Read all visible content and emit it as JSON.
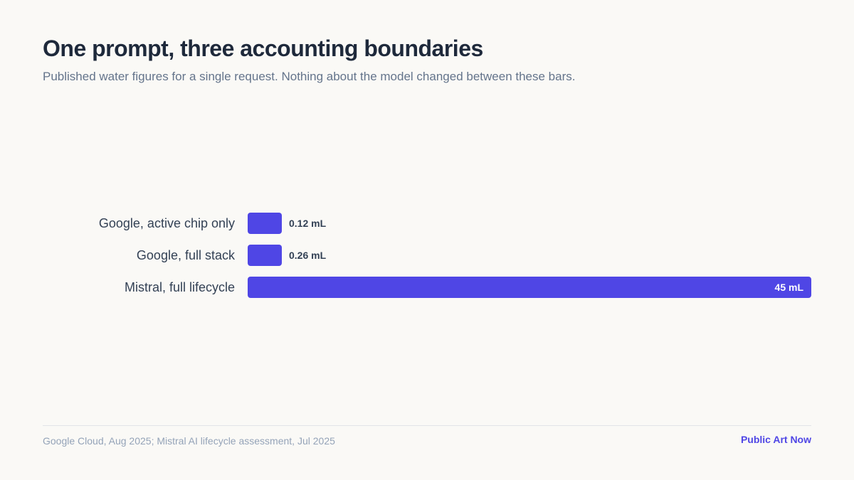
{
  "header": {
    "title": "One prompt, three accounting boundaries",
    "subtitle": "Published water figures for a single request. Nothing about the model changed between these bars."
  },
  "footer": {
    "source": "Google Cloud, Aug 2025; Mistral AI lifecycle assessment, Jul 2025",
    "brand": "Public Art Now"
  },
  "colors": {
    "bar": "#4f46e5",
    "value_outside": "#334155",
    "value_inside": "#ffffff"
  },
  "chart_data": {
    "type": "bar",
    "orientation": "horizontal",
    "categories": [
      "Google, active chip only",
      "Google, full stack",
      "Mistral, full lifecycle"
    ],
    "values": [
      0.12,
      0.26,
      45
    ],
    "value_labels": [
      "0.12 mL",
      "0.26 mL",
      "45 mL"
    ],
    "unit": "mL",
    "title": "One prompt, three accounting boundaries",
    "xlabel": "",
    "ylabel": "",
    "xlim": [
      0,
      45
    ],
    "grid": false,
    "legend": "none"
  }
}
